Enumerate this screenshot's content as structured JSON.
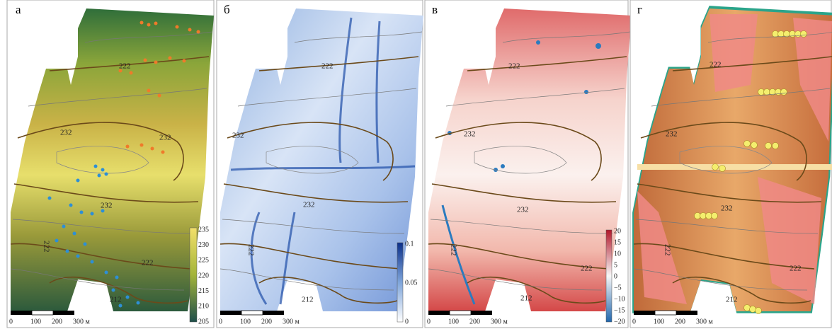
{
  "panels": [
    {
      "label": "а",
      "contour_labels": [
        "222",
        "232",
        "232",
        "232",
        "222",
        "222",
        "212"
      ],
      "colorbar": [
        "235",
        "230",
        "225",
        "220",
        "215",
        "210",
        "205"
      ],
      "scale": [
        "0",
        "100",
        "200",
        "300 м"
      ]
    },
    {
      "label": "б",
      "contour_labels": [
        "222",
        "232",
        "232",
        "222",
        "212"
      ],
      "colorbar": [
        "0.1",
        "0.05",
        "0"
      ],
      "scale": [
        "0",
        "100",
        "200",
        "300 м"
      ]
    },
    {
      "label": "в",
      "contour_labels": [
        "222",
        "232",
        "232",
        "222",
        "222",
        "212"
      ],
      "colorbar": [
        "20",
        "15",
        "10",
        "5",
        "0",
        "−5",
        "−10",
        "−15",
        "−20"
      ],
      "scale": [
        "0",
        "100",
        "200",
        "300 м"
      ]
    },
    {
      "label": "г",
      "contour_labels": [
        "222",
        "232",
        "232",
        "222",
        "222",
        "212"
      ],
      "scale": [
        "0",
        "100",
        "200",
        "300 м"
      ]
    }
  ]
}
